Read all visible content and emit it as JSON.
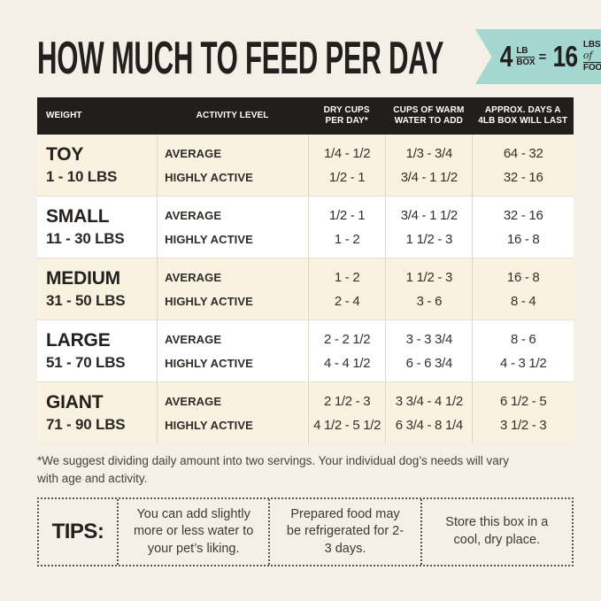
{
  "header": {
    "title": "HOW MUCH TO FEED PER DAY",
    "badge": {
      "box_count": "4",
      "box_unit_top": "LB",
      "box_unit_bottom": "BOX",
      "equals": "=",
      "food_count": "16",
      "food_unit_top": "LBS",
      "food_unit_script": "of",
      "food_unit_bottom": "FOOD!"
    }
  },
  "table": {
    "columns": [
      "WEIGHT",
      "ACTIVITY LEVEL",
      "DRY CUPS\nPER DAY*",
      "CUPS OF WARM\nWATER TO ADD",
      "APPROX. DAYS A\n4LB BOX WILL LAST"
    ],
    "rows": [
      {
        "size": "TOY",
        "range": "1 - 10 LBS",
        "activity": [
          "AVERAGE",
          "HIGHLY ACTIVE"
        ],
        "dry_cups": [
          "1/4 - 1/2",
          "1/2 - 1"
        ],
        "water": [
          "1/3 - 3/4",
          "3/4 - 1 1/2"
        ],
        "days": [
          "64 - 32",
          "32 - 16"
        ]
      },
      {
        "size": "SMALL",
        "range": "11 - 30 LBS",
        "activity": [
          "AVERAGE",
          "HIGHLY ACTIVE"
        ],
        "dry_cups": [
          "1/2 - 1",
          "1 - 2"
        ],
        "water": [
          "3/4 - 1 1/2",
          "1 1/2 - 3"
        ],
        "days": [
          "32 - 16",
          "16 - 8"
        ]
      },
      {
        "size": "MEDIUM",
        "range": "31 - 50 LBS",
        "activity": [
          "AVERAGE",
          "HIGHLY ACTIVE"
        ],
        "dry_cups": [
          "1 - 2",
          "2 - 4"
        ],
        "water": [
          "1 1/2 - 3",
          "3 - 6"
        ],
        "days": [
          "16 - 8",
          "8 - 4"
        ]
      },
      {
        "size": "LARGE",
        "range": "51 - 70 LBS",
        "activity": [
          "AVERAGE",
          "HIGHLY ACTIVE"
        ],
        "dry_cups": [
          "2 - 2 1/2",
          "4 - 4 1/2"
        ],
        "water": [
          "3 - 3 3/4",
          "6 - 6 3/4"
        ],
        "days": [
          "8 - 6",
          "4 - 3 1/2"
        ]
      },
      {
        "size": "GIANT",
        "range": "71 - 90 LBS",
        "activity": [
          "AVERAGE",
          "HIGHLY ACTIVE"
        ],
        "dry_cups": [
          "2 1/2 - 3",
          "4 1/2 - 5 1/2"
        ],
        "water": [
          "3 3/4 - 4 1/2",
          "6 3/4 - 8 1/4"
        ],
        "days": [
          "6 1/2 - 5",
          "3 1/2 - 3"
        ]
      }
    ]
  },
  "footnote": "*We suggest dividing daily amount into two servings. Your individual dog’s needs will vary\nwith age and activity.",
  "tips": {
    "label": "TIPS:",
    "items": [
      "You can add slightly more or less water to your pet’s liking.",
      "Prepared food may be refrigerated for 2-3 days.",
      "Store this box in a cool, dry place."
    ]
  },
  "colors": {
    "page_bg": "#f5f0e7",
    "row_cream": "#faf2e1",
    "row_white": "#ffffff",
    "header_bg": "#211e1c",
    "accent_teal": "#a5d7d1",
    "text_dark": "#221f1d"
  }
}
